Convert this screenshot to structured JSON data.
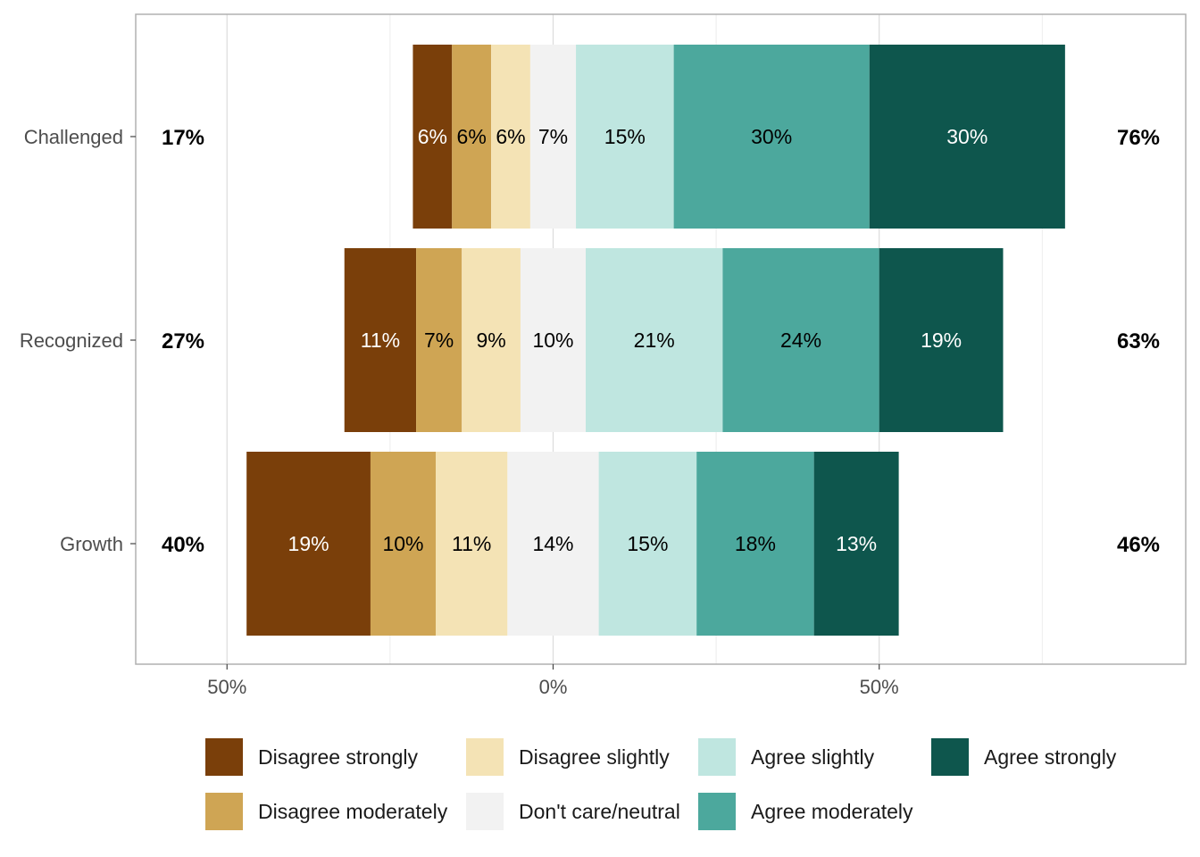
{
  "chart_data": {
    "type": "bar",
    "orientation": "horizontal",
    "stacked": "diverging",
    "categories": [
      "Challenged",
      "Recognized",
      "Growth"
    ],
    "levels": [
      "Disagree strongly",
      "Disagree moderately",
      "Disagree slightly",
      "Don't care/neutral",
      "Agree slightly",
      "Agree moderately",
      "Agree strongly"
    ],
    "colors": [
      "#7a3f0a",
      "#cfa554",
      "#f4e3b5",
      "#f2f2f2",
      "#bfe6e0",
      "#4ca89d",
      "#0e564d"
    ],
    "label_colors": [
      "#ffffff",
      "#000000",
      "#000000",
      "#000000",
      "#000000",
      "#000000",
      "#ffffff"
    ],
    "values": [
      [
        6,
        6,
        6,
        7,
        15,
        30,
        30
      ],
      [
        11,
        7,
        9,
        10,
        21,
        24,
        19
      ],
      [
        19,
        10,
        11,
        14,
        15,
        18,
        13
      ]
    ],
    "value_labels": [
      [
        "6%",
        "6%",
        "6%",
        "7%",
        "15%",
        "30%",
        "30%"
      ],
      [
        "11%",
        "7%",
        "9%",
        "10%",
        "21%",
        "24%",
        "19%"
      ],
      [
        "19%",
        "10%",
        "11%",
        "14%",
        "15%",
        "18%",
        "13%"
      ]
    ],
    "left_totals": [
      "17%",
      "27%",
      "40%"
    ],
    "right_totals": [
      "76%",
      "63%",
      "46%"
    ],
    "x_ticks": [
      -50,
      0,
      50
    ],
    "x_tick_labels": [
      "50%",
      "0%",
      "50%"
    ],
    "xlim": [
      -64,
      97
    ],
    "grid": true,
    "legend_position": "bottom"
  }
}
